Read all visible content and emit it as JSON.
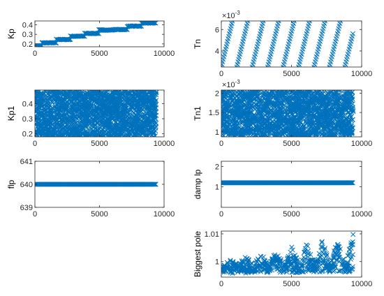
{
  "accent": "#0072BD",
  "chart_data": [
    {
      "id": "kp",
      "type": "scatter",
      "marker": "x",
      "ylabel": "Kp",
      "xlim": [
        0,
        10000
      ],
      "ylim": [
        0.17,
        0.44
      ],
      "xticks": [
        "0",
        "5000",
        "10000"
      ],
      "xtick_values": [
        0,
        5000,
        10000
      ],
      "yticks": [
        "0.2",
        "0.3",
        "0.4"
      ],
      "ytick_values": [
        0.2,
        0.3,
        0.4
      ],
      "exponent": "",
      "series": [
        {
          "pattern": "steps",
          "x_start": 0,
          "x_end": 9400,
          "segments": [
            {
              "x0": 0,
              "x1": 550,
              "y": 0.18
            },
            {
              "x0": 550,
              "x1": 1650,
              "y": 0.211
            },
            {
              "x0": 1650,
              "x1": 2750,
              "y": 0.246
            },
            {
              "x0": 2750,
              "x1": 3850,
              "y": 0.28
            },
            {
              "x0": 3850,
              "x1": 4950,
              "y": 0.31
            },
            {
              "x0": 4950,
              "x1": 6050,
              "y": 0.345
            },
            {
              "x0": 6050,
              "x1": 7150,
              "y": 0.35
            },
            {
              "x0": 7150,
              "x1": 8250,
              "y": 0.385
            },
            {
              "x0": 8250,
              "x1": 9400,
              "y": 0.418
            }
          ]
        }
      ]
    },
    {
      "id": "tn",
      "type": "scatter",
      "marker": "x",
      "ylabel": "Tn",
      "xlim": [
        0,
        10000
      ],
      "ylim": [
        0.0025,
        0.0068
      ],
      "xticks": [
        "0",
        "5000",
        "10000"
      ],
      "xtick_values": [
        0,
        5000,
        10000
      ],
      "yticks": [
        "4",
        "6"
      ],
      "ytick_values": [
        0.004,
        0.006
      ],
      "exponent": "×10",
      "exponent_power": "-3",
      "series": [
        {
          "pattern": "ramps",
          "period": 1100,
          "y_low": 0.0025,
          "y_high": 0.0068,
          "x_start": 0,
          "x_end": 9400
        }
      ]
    },
    {
      "id": "kp1",
      "type": "scatter",
      "marker": "x",
      "ylabel": "Kp1",
      "xlim": [
        0,
        10000
      ],
      "ylim": [
        0.18,
        0.49
      ],
      "xticks": [
        "0",
        "5000",
        "10000"
      ],
      "xtick_values": [
        0,
        5000,
        10000
      ],
      "yticks": [
        "0.2",
        "0.3",
        "0.4"
      ],
      "ytick_values": [
        0.2,
        0.3,
        0.4
      ],
      "exponent": "",
      "series": [
        {
          "pattern": "band",
          "y_low": 0.18,
          "y_high": 0.49,
          "x_start": 0,
          "x_end": 9400
        }
      ]
    },
    {
      "id": "tn1",
      "type": "scatter",
      "marker": "x",
      "ylabel": "Tn1",
      "xlim": [
        0,
        10000
      ],
      "ylim": [
        0.00087,
        0.00208
      ],
      "xticks": [
        "0",
        "5000",
        "10000"
      ],
      "xtick_values": [
        0,
        5000,
        10000
      ],
      "yticks": [
        "1",
        "1.5",
        "2"
      ],
      "ytick_values": [
        0.001,
        0.0015,
        0.002
      ],
      "exponent": "×10",
      "exponent_power": "-3",
      "series": [
        {
          "pattern": "band",
          "y_low": 0.00087,
          "y_high": 0.00208,
          "x_start": 0,
          "x_end": 9400
        }
      ]
    },
    {
      "id": "flp",
      "type": "scatter",
      "marker": "x",
      "ylabel": "flp",
      "xlim": [
        0,
        10000
      ],
      "ylim": [
        639,
        641
      ],
      "xticks": [
        "0",
        "5000",
        "10000"
      ],
      "xtick_values": [
        0,
        5000,
        10000
      ],
      "yticks": [
        "639",
        "640",
        "641"
      ],
      "ytick_values": [
        639,
        640,
        641
      ],
      "exponent": "",
      "series": [
        {
          "pattern": "flat",
          "y": 640,
          "x_start": 0,
          "x_end": 9400
        }
      ]
    },
    {
      "id": "damplp",
      "type": "scatter",
      "marker": "x",
      "ylabel": "damp lp",
      "xlim": [
        0,
        10000
      ],
      "ylim": [
        0,
        2.25
      ],
      "xticks": [
        "0",
        "5000",
        "10000"
      ],
      "xtick_values": [
        0,
        5000,
        10000
      ],
      "yticks": [
        "1",
        "2"
      ],
      "ytick_values": [
        1,
        2
      ],
      "exponent": "",
      "series": [
        {
          "pattern": "flat",
          "y": 1.2,
          "x_start": 0,
          "x_end": 9400
        }
      ]
    },
    {
      "id": "biggestpole",
      "type": "scatter",
      "marker": "x",
      "ylabel": "Biggest pole",
      "xlim": [
        0,
        10000
      ],
      "ylim": [
        0.9944,
        1.011
      ],
      "xticks": [
        "0",
        "5000",
        "10000"
      ],
      "xtick_values": [
        0,
        5000,
        10000
      ],
      "yticks": [
        "1",
        "1.01"
      ],
      "ytick_values": [
        1.0,
        1.01
      ],
      "exponent": "",
      "series": [
        {
          "pattern": "sawtooth",
          "period": 1100,
          "x_start": 0,
          "x_end": 9400,
          "rise_low": 0.9977,
          "rise_high_start": 1.0008,
          "rise_high_end": 1.0105,
          "drop_low_start": 0.9958,
          "drop_low_end": 0.9962
        }
      ]
    }
  ]
}
